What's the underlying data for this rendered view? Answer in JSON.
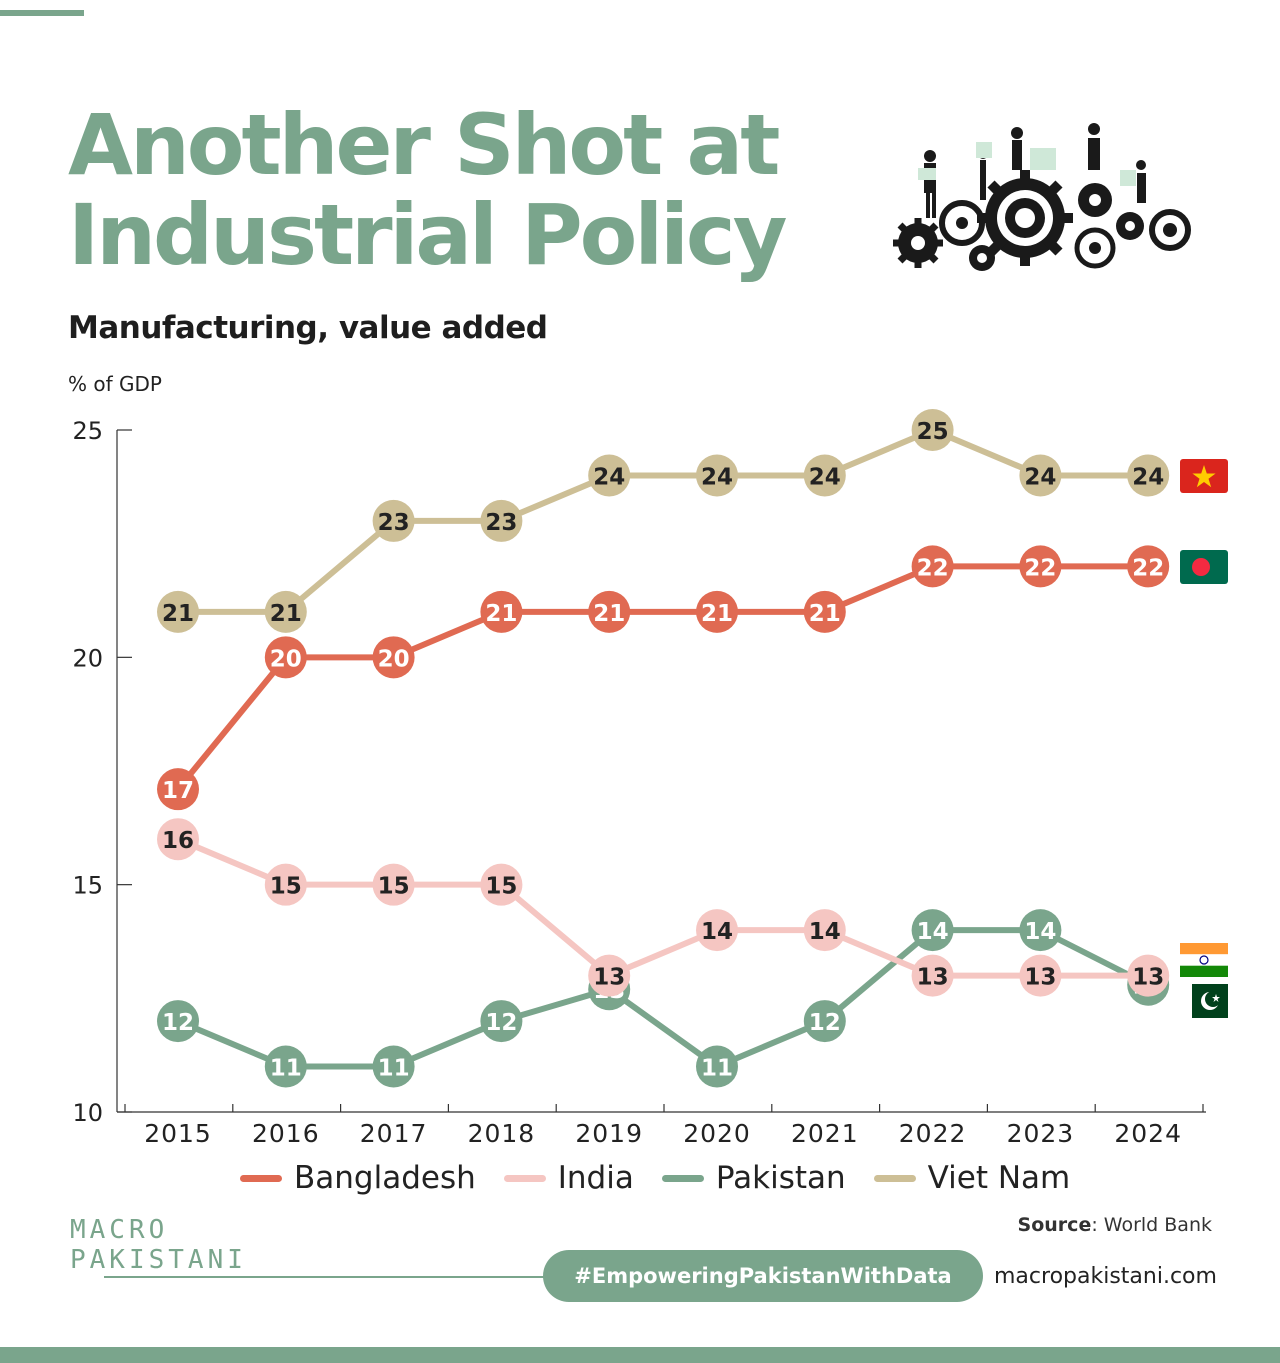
{
  "header": {
    "title_line1": "Another Shot at",
    "title_line2": "Industrial Policy",
    "subtitle": "Manufacturing, value added",
    "unit_label": "% of GDP"
  },
  "colors": {
    "brand": "#7aa58c",
    "bangladesh": "#e06a52",
    "india": "#f5c6c2",
    "pakistan": "#7aa58c",
    "vietnam": "#cdbf96"
  },
  "chart_data": {
    "type": "line",
    "title": "Manufacturing, value added",
    "ylabel": "% of GDP",
    "xlabel": "",
    "ylim": [
      10,
      25
    ],
    "yticks": [
      10,
      15,
      20,
      25
    ],
    "categories": [
      "2015",
      "2016",
      "2017",
      "2018",
      "2019",
      "2020",
      "2021",
      "2022",
      "2023",
      "2024"
    ],
    "series": [
      {
        "name": "Bangladesh",
        "color": "#e06a52",
        "values": [
          17.1,
          20,
          20,
          21,
          21,
          21,
          21,
          22,
          22,
          22
        ],
        "labels": [
          "17",
          "20",
          "20",
          "21",
          "21",
          "21",
          "21",
          "22",
          "22",
          "22"
        ],
        "label_color": "#ffffff"
      },
      {
        "name": "India",
        "color": "#f5c6c2",
        "values": [
          16,
          15,
          15,
          15,
          13,
          14,
          14,
          13,
          13,
          13
        ],
        "labels": [
          "16",
          "15",
          "15",
          "15",
          "13",
          "14",
          "14",
          "13",
          "13",
          "13"
        ],
        "label_color": "#222222"
      },
      {
        "name": "Pakistan",
        "color": "#7aa58c",
        "values": [
          12,
          11,
          11,
          12,
          12.7,
          11,
          12,
          14,
          14,
          12.8
        ],
        "labels": [
          "12",
          "11",
          "11",
          "12",
          "13",
          "11",
          "12",
          "14",
          "14",
          "13"
        ],
        "label_color": "#ffffff"
      },
      {
        "name": "Viet Nam",
        "color": "#cdbf96",
        "values": [
          21,
          21,
          23,
          23,
          24,
          24,
          24,
          25,
          24,
          24
        ],
        "labels": [
          "21",
          "21",
          "23",
          "23",
          "24",
          "24",
          "24",
          "25",
          "24",
          "24"
        ],
        "label_color": "#222222"
      }
    ],
    "legend_position": "bottom",
    "grid": false
  },
  "legend": [
    {
      "label": "Bangladesh",
      "color": "#e06a52"
    },
    {
      "label": "India",
      "color": "#f5c6c2"
    },
    {
      "label": "Pakistan",
      "color": "#7aa58c"
    },
    {
      "label": "Viet Nam",
      "color": "#cdbf96"
    }
  ],
  "footer": {
    "source_key": "Source",
    "source_value": ": World Bank",
    "brand_line1": "MACRO",
    "brand_line2": "PAKISTANI",
    "hashtag": "#EmpoweringPakistanWithData",
    "website": "macropakistani.com"
  },
  "icons": [
    "gears-workers-icon",
    "vietnam-flag-icon",
    "bangladesh-flag-icon",
    "india-flag-icon",
    "pakistan-flag-icon"
  ]
}
